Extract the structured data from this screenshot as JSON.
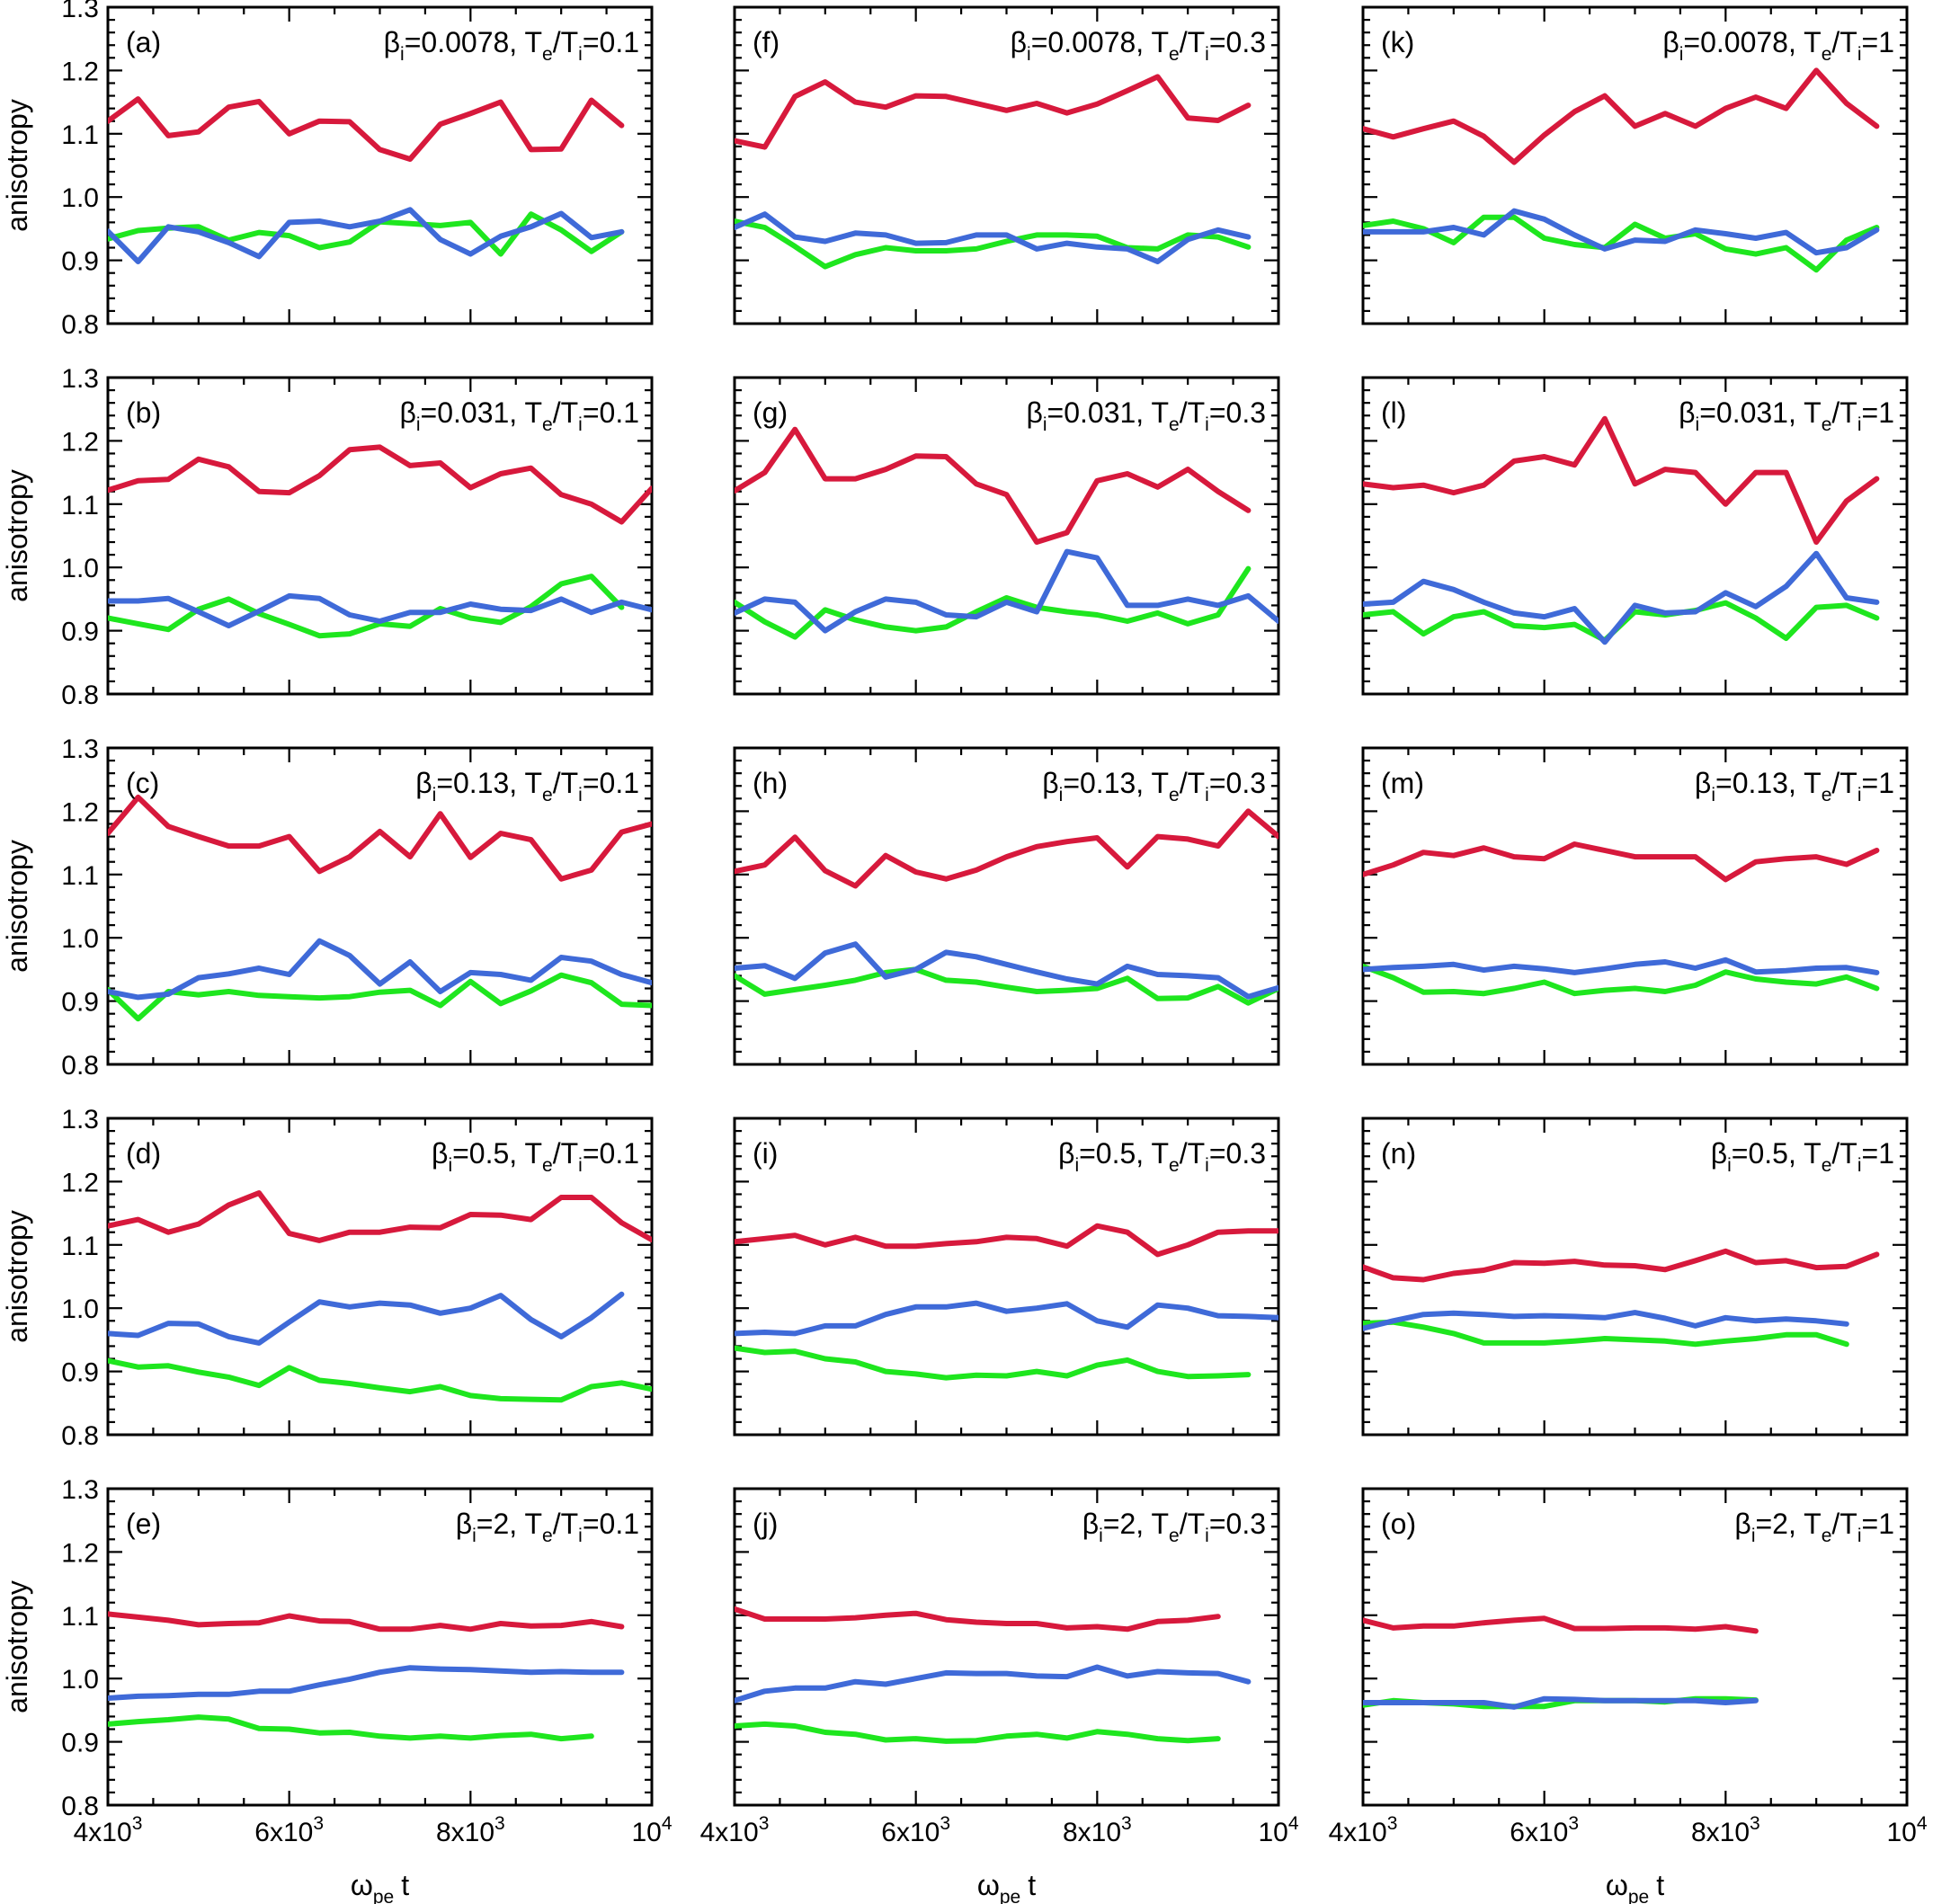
{
  "chart_data": {
    "type": "line",
    "layout": "5x3 grid",
    "ylabel": "anisotropy",
    "xlabel": "ωpe t",
    "xlabel_parts": {
      "omega": "ω",
      "sub": "pe",
      "t": "t"
    },
    "ylim": [
      0.8,
      1.3
    ],
    "xlim": [
      4000,
      10000
    ],
    "yticks": [
      0.8,
      0.9,
      1.0,
      1.1,
      1.2,
      1.3
    ],
    "ytick_labels": [
      "0.8",
      "0.9",
      "1.0",
      "1.1",
      "1.2",
      "1.3"
    ],
    "xticks": [
      {
        "value": 4000,
        "base": "4x10",
        "exp": "3"
      },
      {
        "value": 6000,
        "base": "6x10",
        "exp": "3"
      },
      {
        "value": 8000,
        "base": "8x10",
        "exp": "3"
      },
      {
        "value": 10000,
        "base": "10",
        "exp": "4"
      }
    ],
    "series_colors": {
      "red": "#d7193c",
      "blue": "#3f6ad8",
      "green": "#1ee61e"
    },
    "panels": [
      {
        "label": "(a)",
        "beta": "0.0078",
        "ratio": "0.1",
        "red": [
          1.12,
          1.155,
          1.097,
          1.103,
          1.142,
          1.151,
          1.1,
          1.12,
          1.119,
          1.075,
          1.06,
          1.115,
          1.132,
          1.15,
          1.075,
          1.076,
          1.153,
          1.113
        ],
        "blue": [
          0.946,
          0.898,
          0.953,
          0.945,
          0.928,
          0.906,
          0.96,
          0.962,
          0.953,
          0.962,
          0.98,
          0.933,
          0.91,
          0.938,
          0.953,
          0.974,
          0.936,
          0.945
        ],
        "green": [
          0.934,
          0.947,
          0.951,
          0.953,
          0.932,
          0.944,
          0.939,
          0.92,
          0.929,
          0.961,
          0.958,
          0.955,
          0.96,
          0.91,
          0.973,
          0.948,
          0.914,
          0.945
        ]
      },
      {
        "label": "(b)",
        "beta": "0.031",
        "ratio": "0.1",
        "red": [
          1.122,
          1.137,
          1.139,
          1.171,
          1.159,
          1.12,
          1.118,
          1.145,
          1.186,
          1.19,
          1.161,
          1.165,
          1.126,
          1.148,
          1.157,
          1.115,
          1.1,
          1.072,
          1.125
        ],
        "blue": [
          0.947,
          0.947,
          0.951,
          0.93,
          0.908,
          0.931,
          0.955,
          0.951,
          0.925,
          0.915,
          0.929,
          0.929,
          0.942,
          0.934,
          0.932,
          0.95,
          0.929,
          0.945,
          0.933
        ],
        "green": [
          0.92,
          0.911,
          0.902,
          0.934,
          0.95,
          0.927,
          0.91,
          0.892,
          0.895,
          0.911,
          0.907,
          0.935,
          0.92,
          0.913,
          0.938,
          0.974,
          0.986,
          0.937
        ]
      },
      {
        "label": "(c)",
        "beta": "0.13",
        "ratio": "0.1",
        "red": [
          1.165,
          1.222,
          1.176,
          1.16,
          1.145,
          1.145,
          1.16,
          1.105,
          1.128,
          1.168,
          1.128,
          1.196,
          1.127,
          1.165,
          1.155,
          1.093,
          1.107,
          1.167,
          1.18
        ],
        "blue": [
          0.915,
          0.906,
          0.911,
          0.937,
          0.943,
          0.952,
          0.942,
          0.995,
          0.972,
          0.927,
          0.962,
          0.915,
          0.945,
          0.942,
          0.933,
          0.969,
          0.963,
          0.942,
          0.929
        ],
        "green": [
          0.918,
          0.872,
          0.915,
          0.91,
          0.915,
          0.909,
          0.907,
          0.905,
          0.907,
          0.914,
          0.917,
          0.893,
          0.931,
          0.896,
          0.916,
          0.941,
          0.929,
          0.895,
          0.893
        ]
      },
      {
        "label": "(d)",
        "beta": "0.5",
        "ratio": "0.1",
        "red": [
          1.13,
          1.14,
          1.12,
          1.133,
          1.163,
          1.182,
          1.118,
          1.107,
          1.12,
          1.12,
          1.128,
          1.127,
          1.148,
          1.147,
          1.14,
          1.175,
          1.175,
          1.135,
          1.108
        ],
        "blue": [
          0.96,
          0.957,
          0.976,
          0.975,
          0.955,
          0.945,
          0.978,
          1.01,
          1.002,
          1.008,
          1.005,
          0.992,
          1.0,
          1.02,
          0.982,
          0.955,
          0.985,
          1.022
        ],
        "green": [
          0.917,
          0.907,
          0.909,
          0.899,
          0.891,
          0.878,
          0.906,
          0.886,
          0.881,
          0.874,
          0.868,
          0.876,
          0.862,
          0.857,
          0.856,
          0.855,
          0.876,
          0.882,
          0.872
        ]
      },
      {
        "label": "(e)",
        "beta": "2",
        "ratio": "0.1",
        "red": [
          1.102,
          1.097,
          1.092,
          1.085,
          1.087,
          1.088,
          1.099,
          1.091,
          1.09,
          1.078,
          1.078,
          1.084,
          1.078,
          1.087,
          1.083,
          1.084,
          1.09,
          1.082
        ],
        "blue": [
          0.969,
          0.972,
          0.973,
          0.975,
          0.975,
          0.98,
          0.98,
          0.99,
          0.999,
          1.01,
          1.017,
          1.015,
          1.014,
          1.012,
          1.01,
          1.011,
          1.01,
          1.01
        ],
        "green": [
          0.928,
          0.932,
          0.935,
          0.939,
          0.936,
          0.921,
          0.92,
          0.914,
          0.915,
          0.909,
          0.906,
          0.909,
          0.906,
          0.91,
          0.912,
          0.905,
          0.909
        ]
      },
      {
        "label": "(f)",
        "beta": "0.0078",
        "ratio": "0.3",
        "red": [
          1.089,
          1.079,
          1.159,
          1.182,
          1.15,
          1.142,
          1.16,
          1.159,
          1.148,
          1.137,
          1.148,
          1.133,
          1.147,
          1.168,
          1.19,
          1.125,
          1.121,
          1.145
        ],
        "blue": [
          0.952,
          0.973,
          0.937,
          0.93,
          0.943,
          0.94,
          0.927,
          0.928,
          0.94,
          0.94,
          0.918,
          0.927,
          0.921,
          0.918,
          0.898,
          0.933,
          0.948,
          0.937
        ],
        "green": [
          0.962,
          0.952,
          0.922,
          0.89,
          0.909,
          0.92,
          0.915,
          0.915,
          0.918,
          0.93,
          0.94,
          0.94,
          0.938,
          0.92,
          0.918,
          0.94,
          0.937,
          0.921
        ]
      },
      {
        "label": "(g)",
        "beta": "0.031",
        "ratio": "0.3",
        "red": [
          1.121,
          1.15,
          1.218,
          1.14,
          1.14,
          1.155,
          1.176,
          1.175,
          1.132,
          1.115,
          1.04,
          1.055,
          1.137,
          1.148,
          1.127,
          1.155,
          1.12,
          1.09
        ],
        "blue": [
          0.928,
          0.95,
          0.945,
          0.9,
          0.93,
          0.95,
          0.945,
          0.925,
          0.922,
          0.945,
          0.93,
          1.025,
          1.015,
          0.94,
          0.94,
          0.95,
          0.94,
          0.955,
          0.915
        ],
        "green": [
          0.945,
          0.914,
          0.89,
          0.933,
          0.917,
          0.906,
          0.9,
          0.906,
          0.93,
          0.952,
          0.937,
          0.93,
          0.925,
          0.915,
          0.928,
          0.911,
          0.925,
          0.998
        ]
      },
      {
        "label": "(h)",
        "beta": "0.13",
        "ratio": "0.3",
        "red": [
          1.105,
          1.115,
          1.159,
          1.106,
          1.082,
          1.13,
          1.104,
          1.093,
          1.107,
          1.128,
          1.144,
          1.152,
          1.158,
          1.112,
          1.16,
          1.156,
          1.145,
          1.2,
          1.16
        ],
        "blue": [
          0.952,
          0.956,
          0.936,
          0.976,
          0.99,
          0.938,
          0.95,
          0.977,
          0.97,
          0.958,
          0.946,
          0.935,
          0.927,
          0.955,
          0.942,
          0.94,
          0.937,
          0.907,
          0.921
        ],
        "green": [
          0.94,
          0.911,
          0.918,
          0.925,
          0.933,
          0.945,
          0.95,
          0.933,
          0.93,
          0.922,
          0.915,
          0.917,
          0.92,
          0.936,
          0.904,
          0.905,
          0.923,
          0.897,
          0.92
        ]
      },
      {
        "label": "(i)",
        "beta": "0.5",
        "ratio": "0.3",
        "red": [
          1.105,
          1.11,
          1.115,
          1.1,
          1.112,
          1.098,
          1.098,
          1.102,
          1.105,
          1.112,
          1.11,
          1.098,
          1.13,
          1.12,
          1.085,
          1.1,
          1.12,
          1.122,
          1.122
        ],
        "blue": [
          0.96,
          0.962,
          0.96,
          0.972,
          0.972,
          0.99,
          1.002,
          1.002,
          1.008,
          0.995,
          1.0,
          1.007,
          0.98,
          0.97,
          1.005,
          1.0,
          0.988,
          0.987,
          0.985
        ],
        "green": [
          0.937,
          0.93,
          0.932,
          0.92,
          0.915,
          0.9,
          0.896,
          0.89,
          0.894,
          0.893,
          0.9,
          0.893,
          0.91,
          0.918,
          0.9,
          0.892,
          0.893,
          0.895
        ]
      },
      {
        "label": "(j)",
        "beta": "2",
        "ratio": "0.3",
        "red": [
          1.11,
          1.094,
          1.094,
          1.094,
          1.096,
          1.1,
          1.103,
          1.093,
          1.089,
          1.087,
          1.087,
          1.08,
          1.082,
          1.078,
          1.09,
          1.092,
          1.098
        ],
        "blue": [
          0.965,
          0.98,
          0.985,
          0.985,
          0.995,
          0.991,
          1.0,
          1.009,
          1.008,
          1.008,
          1.004,
          1.003,
          1.018,
          1.004,
          1.011,
          1.009,
          1.008,
          0.995
        ],
        "green": [
          0.925,
          0.928,
          0.925,
          0.915,
          0.912,
          0.903,
          0.905,
          0.901,
          0.902,
          0.909,
          0.912,
          0.906,
          0.916,
          0.912,
          0.905,
          0.902,
          0.905
        ]
      },
      {
        "label": "(k)",
        "beta": "0.0078",
        "ratio": "1",
        "red": [
          1.108,
          1.095,
          1.108,
          1.12,
          1.096,
          1.055,
          1.098,
          1.135,
          1.16,
          1.112,
          1.132,
          1.112,
          1.14,
          1.158,
          1.14,
          1.2,
          1.148,
          1.112
        ],
        "blue": [
          0.945,
          0.945,
          0.945,
          0.952,
          0.94,
          0.978,
          0.965,
          0.94,
          0.918,
          0.932,
          0.93,
          0.948,
          0.942,
          0.935,
          0.944,
          0.912,
          0.92,
          0.948
        ],
        "green": [
          0.955,
          0.962,
          0.95,
          0.928,
          0.968,
          0.968,
          0.935,
          0.925,
          0.92,
          0.957,
          0.935,
          0.942,
          0.918,
          0.91,
          0.92,
          0.885,
          0.932,
          0.952
        ]
      },
      {
        "label": "(l)",
        "beta": "0.031",
        "ratio": "1",
        "red": [
          1.132,
          1.126,
          1.13,
          1.118,
          1.13,
          1.168,
          1.175,
          1.162,
          1.235,
          1.132,
          1.155,
          1.15,
          1.1,
          1.15,
          1.15,
          1.04,
          1.105,
          1.14
        ],
        "blue": [
          0.942,
          0.945,
          0.978,
          0.965,
          0.945,
          0.928,
          0.922,
          0.935,
          0.882,
          0.94,
          0.928,
          0.93,
          0.96,
          0.938,
          0.97,
          1.022,
          0.952,
          0.945
        ],
        "green": [
          0.925,
          0.93,
          0.895,
          0.922,
          0.93,
          0.908,
          0.905,
          0.91,
          0.885,
          0.93,
          0.925,
          0.932,
          0.944,
          0.92,
          0.888,
          0.937,
          0.94,
          0.92
        ]
      },
      {
        "label": "(m)",
        "beta": "0.13",
        "ratio": "1",
        "red": [
          1.1,
          1.115,
          1.135,
          1.13,
          1.142,
          1.128,
          1.125,
          1.148,
          1.138,
          1.128,
          1.128,
          1.128,
          1.092,
          1.12,
          1.125,
          1.128,
          1.116,
          1.138
        ],
        "blue": [
          0.95,
          0.953,
          0.955,
          0.958,
          0.949,
          0.955,
          0.951,
          0.945,
          0.951,
          0.958,
          0.962,
          0.952,
          0.965,
          0.946,
          0.948,
          0.952,
          0.953,
          0.945
        ],
        "green": [
          0.955,
          0.937,
          0.914,
          0.915,
          0.912,
          0.92,
          0.93,
          0.912,
          0.917,
          0.92,
          0.915,
          0.925,
          0.946,
          0.935,
          0.93,
          0.927,
          0.938,
          0.92
        ]
      },
      {
        "label": "(n)",
        "beta": "0.5",
        "ratio": "1",
        "red": [
          1.065,
          1.048,
          1.045,
          1.055,
          1.06,
          1.072,
          1.071,
          1.074,
          1.068,
          1.067,
          1.061,
          1.075,
          1.09,
          1.072,
          1.075,
          1.064,
          1.066,
          1.085
        ],
        "blue": [
          0.968,
          0.98,
          0.99,
          0.992,
          0.99,
          0.987,
          0.988,
          0.987,
          0.985,
          0.993,
          0.984,
          0.972,
          0.985,
          0.98,
          0.983,
          0.98,
          0.975
        ],
        "green": [
          0.976,
          0.978,
          0.97,
          0.96,
          0.945,
          0.945,
          0.945,
          0.948,
          0.952,
          0.95,
          0.948,
          0.943,
          0.948,
          0.952,
          0.958,
          0.958,
          0.943
        ]
      },
      {
        "label": "(o)",
        "beta": "2",
        "ratio": "1",
        "red": [
          1.092,
          1.08,
          1.083,
          1.083,
          1.088,
          1.092,
          1.095,
          1.079,
          1.079,
          1.08,
          1.08,
          1.078,
          1.082,
          1.075
        ],
        "blue": [
          0.962,
          0.962,
          0.962,
          0.962,
          0.962,
          0.955,
          0.968,
          0.967,
          0.965,
          0.965,
          0.965,
          0.965,
          0.962,
          0.965
        ],
        "green": [
          0.958,
          0.965,
          0.962,
          0.96,
          0.956,
          0.956,
          0.956,
          0.965,
          0.965,
          0.965,
          0.963,
          0.968,
          0.968,
          0.966
        ]
      }
    ]
  }
}
